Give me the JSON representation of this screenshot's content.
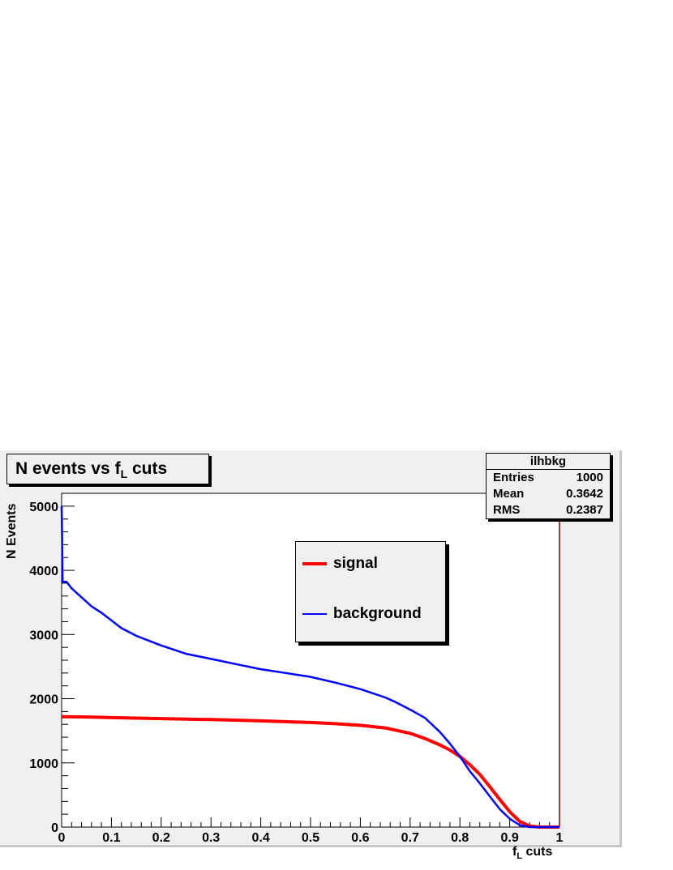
{
  "chart_data": {
    "type": "line",
    "title_main": "N events vs f",
    "title_sub": "L",
    "title_tail": " cuts",
    "xlabel_main": "f",
    "xlabel_sub": "L",
    "xlabel_tail": " cuts",
    "ylabel": "N Events",
    "xlim": [
      0,
      1
    ],
    "ylim": [
      0,
      5200
    ],
    "x_ticks": [
      "0",
      "0.1",
      "0.2",
      "0.3",
      "0.4",
      "0.5",
      "0.6",
      "0.7",
      "0.8",
      "0.9",
      "1"
    ],
    "y_ticks": [
      "0",
      "1000",
      "2000",
      "3000",
      "4000",
      "5000"
    ],
    "series": [
      {
        "name": "signal",
        "color": "#ff0000",
        "x": [
          0,
          0.05,
          0.1,
          0.2,
          0.3,
          0.4,
          0.5,
          0.55,
          0.6,
          0.65,
          0.7,
          0.73,
          0.76,
          0.78,
          0.8,
          0.82,
          0.84,
          0.86,
          0.88,
          0.9,
          0.92,
          0.94,
          0.96,
          0.98,
          1.0
        ],
        "y": [
          1720,
          1715,
          1705,
          1690,
          1675,
          1655,
          1630,
          1610,
          1585,
          1545,
          1460,
          1380,
          1280,
          1200,
          1100,
          970,
          820,
          630,
          430,
          240,
          90,
          15,
          0,
          0,
          0
        ]
      },
      {
        "name": "background",
        "color": "#0000ff",
        "x": [
          0,
          0.001,
          0.002,
          0.01,
          0.02,
          0.04,
          0.06,
          0.08,
          0.1,
          0.12,
          0.15,
          0.2,
          0.25,
          0.3,
          0.35,
          0.4,
          0.45,
          0.5,
          0.55,
          0.6,
          0.65,
          0.67,
          0.7,
          0.73,
          0.76,
          0.78,
          0.8,
          0.82,
          0.84,
          0.86,
          0.88,
          0.9,
          0.92,
          0.94,
          0.96,
          1.0
        ],
        "y": [
          5000,
          4500,
          3820,
          3820,
          3720,
          3580,
          3440,
          3340,
          3220,
          3100,
          2980,
          2830,
          2700,
          2620,
          2540,
          2460,
          2400,
          2340,
          2250,
          2150,
          2020,
          1950,
          1830,
          1700,
          1480,
          1300,
          1100,
          870,
          680,
          480,
          280,
          130,
          30,
          0,
          0,
          0
        ]
      }
    ]
  },
  "stats": {
    "title": "ilhbkg",
    "rows": [
      {
        "label": "Entries",
        "value": "1000"
      },
      {
        "label": "Mean",
        "value": "0.3642"
      },
      {
        "label": "RMS",
        "value": "0.2387"
      }
    ]
  },
  "legend": [
    {
      "label": "signal",
      "color": "#ff0000"
    },
    {
      "label": "background",
      "color": "#0000ff"
    }
  ]
}
